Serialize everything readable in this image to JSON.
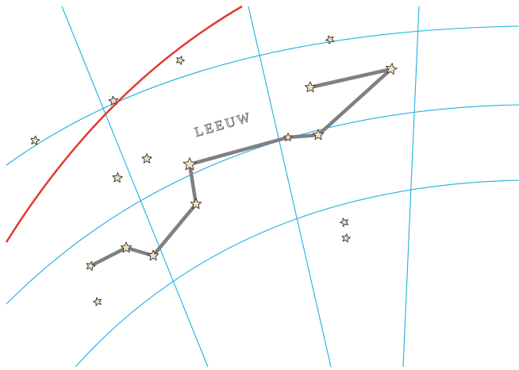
{
  "map": {
    "label": "LEEUW"
  }
}
